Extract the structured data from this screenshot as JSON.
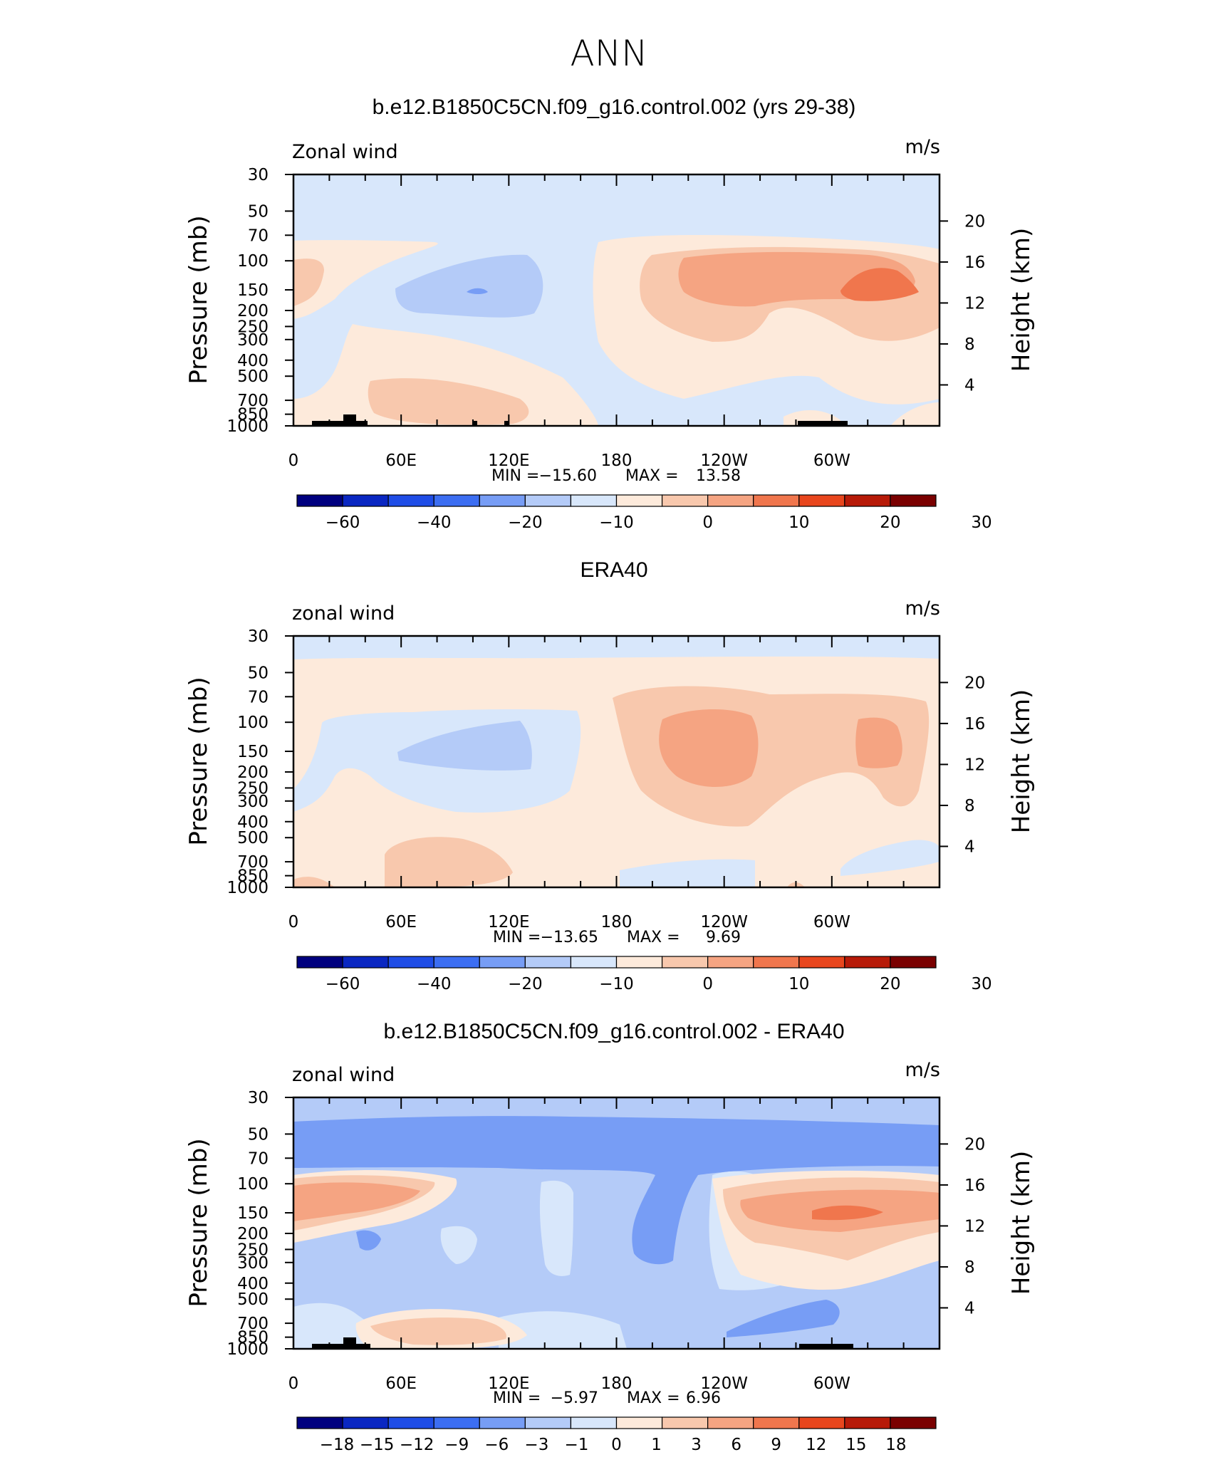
{
  "figure_title": "ANN",
  "colors": {
    "scale_a": [
      "#00007f",
      "#0a27c2",
      "#1f4de6",
      "#3c6ef2",
      "#779df5",
      "#b4cbf8",
      "#d8e7fb",
      "#fdeadb",
      "#f8c8ad",
      "#f5a482",
      "#f0764d",
      "#e8461d",
      "#b71a08",
      "#7a0000"
    ],
    "land": "#000000"
  },
  "chart_data": [
    {
      "type": "heatmap",
      "title": "b.e12.B1850C5CN.f09_g16.control.002 (yrs 29-38)",
      "left_label": "Zonal wind",
      "right_label": "m/s",
      "ylabel": "Pressure (mb)",
      "y2label": "Height (km)",
      "y_ticks": [
        "30",
        "50",
        "70",
        "100",
        "150",
        "200",
        "250",
        "300",
        "400",
        "500",
        "700",
        "850",
        "1000"
      ],
      "y2_ticks": [
        "20",
        "16",
        "12",
        "8",
        "4"
      ],
      "x_ticks": [
        "0",
        "60E",
        "120E",
        "180",
        "120W",
        "60W"
      ],
      "stats": {
        "min_label": "MIN =",
        "min": "−15.60",
        "max_label": "MAX =",
        "max": "13.58"
      },
      "colorbar": {
        "labels": [
          "−60",
          "−40",
          "−20",
          "−10",
          "0",
          "10",
          "20",
          "30"
        ]
      }
    },
    {
      "type": "heatmap",
      "title": "ERA40",
      "left_label": "zonal wind",
      "right_label": "m/s",
      "ylabel": "Pressure (mb)",
      "y2label": "Height (km)",
      "y_ticks": [
        "30",
        "50",
        "70",
        "100",
        "150",
        "200",
        "250",
        "300",
        "400",
        "500",
        "700",
        "850",
        "1000"
      ],
      "y2_ticks": [
        "20",
        "16",
        "12",
        "8",
        "4"
      ],
      "x_ticks": [
        "0",
        "60E",
        "120E",
        "180",
        "120W",
        "60W"
      ],
      "stats": {
        "min_label": "MIN =",
        "min": "−13.65",
        "max_label": "MAX =",
        "max": "9.69"
      },
      "colorbar": {
        "labels": [
          "−60",
          "−40",
          "−20",
          "−10",
          "0",
          "10",
          "20",
          "30"
        ]
      }
    },
    {
      "type": "heatmap",
      "title": "b.e12.B1850C5CN.f09_g16.control.002 - ERA40",
      "left_label": "zonal wind",
      "right_label": "m/s",
      "ylabel": "Pressure (mb)",
      "y2label": "Height (km)",
      "y_ticks": [
        "30",
        "50",
        "70",
        "100",
        "150",
        "200",
        "250",
        "300",
        "400",
        "500",
        "700",
        "850",
        "1000"
      ],
      "y2_ticks": [
        "20",
        "16",
        "12",
        "8",
        "4"
      ],
      "x_ticks": [
        "0",
        "60E",
        "120E",
        "180",
        "120W",
        "60W"
      ],
      "stats": {
        "min_label": "MIN =",
        "min": "−5.97",
        "max_label": "MAX =",
        "max": "6.96"
      },
      "colorbar": {
        "labels": [
          "−18",
          "−15",
          "−12",
          "−9",
          "−6",
          "−3",
          "−1",
          "0",
          "1",
          "3",
          "6",
          "9",
          "12",
          "15",
          "18"
        ]
      }
    }
  ]
}
